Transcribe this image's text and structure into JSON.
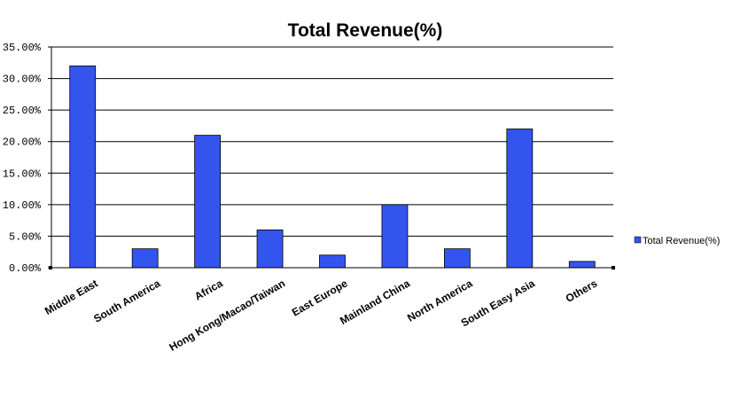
{
  "chart_data": {
    "type": "bar",
    "title": "Total Revenue(%)",
    "categories": [
      "Middle East",
      "South America",
      "Africa",
      "Hong Kong/Macao/Taiwan",
      "East Europe",
      "Mainland China",
      "North America",
      "South Easy Asia",
      "Others"
    ],
    "series": [
      {
        "name": "Total Revenue(%)",
        "values": [
          32,
          3,
          21,
          6,
          2,
          10,
          3,
          22,
          1
        ],
        "color": "#3355ee"
      }
    ],
    "yticks": [
      "0.00%",
      "5.00%",
      "10.00%",
      "15.00%",
      "20.00%",
      "25.00%",
      "30.00%",
      "35.00%"
    ],
    "ylim": [
      0,
      35
    ],
    "grid": true,
    "legend_position": "right"
  }
}
